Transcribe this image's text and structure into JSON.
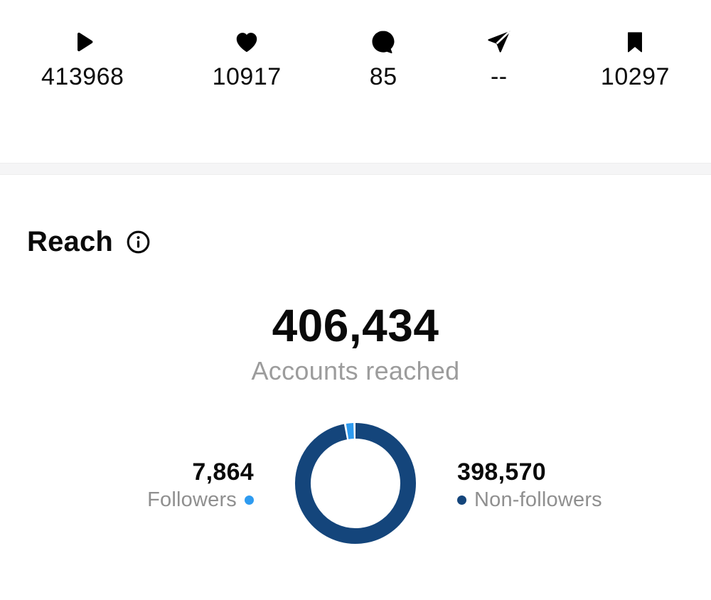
{
  "post_stats": {
    "items": [
      {
        "name": "plays",
        "icon": "play-icon",
        "value": "413968"
      },
      {
        "name": "likes",
        "icon": "heart-icon",
        "value": "10917"
      },
      {
        "name": "comments",
        "icon": "comment-icon",
        "value": "85"
      },
      {
        "name": "shares",
        "icon": "share-icon",
        "value": "--"
      },
      {
        "name": "saves",
        "icon": "bookmark-icon",
        "value": "10297"
      }
    ]
  },
  "reach": {
    "title": "Reach",
    "total": "406,434",
    "total_label": "Accounts reached",
    "followers_value": "7,864",
    "followers_label": "Followers",
    "non_followers_value": "398,570",
    "non_followers_label": "Non-followers"
  },
  "chart_data": {
    "type": "pie",
    "subtype": "donut",
    "title": "Accounts reached",
    "total": 406434,
    "segments": [
      {
        "label": "Followers",
        "value": 7864,
        "color": "#2E9BF0"
      },
      {
        "label": "Non-followers",
        "value": 398570,
        "color": "#14457B"
      }
    ],
    "legend_position": "sides",
    "gap_degrees": 2
  },
  "colors": {
    "followers_blue": "#2E9BF0",
    "non_followers_navy": "#14457B",
    "label_gray": "#8f8f8f",
    "divider_gray": "#f5f5f6"
  }
}
